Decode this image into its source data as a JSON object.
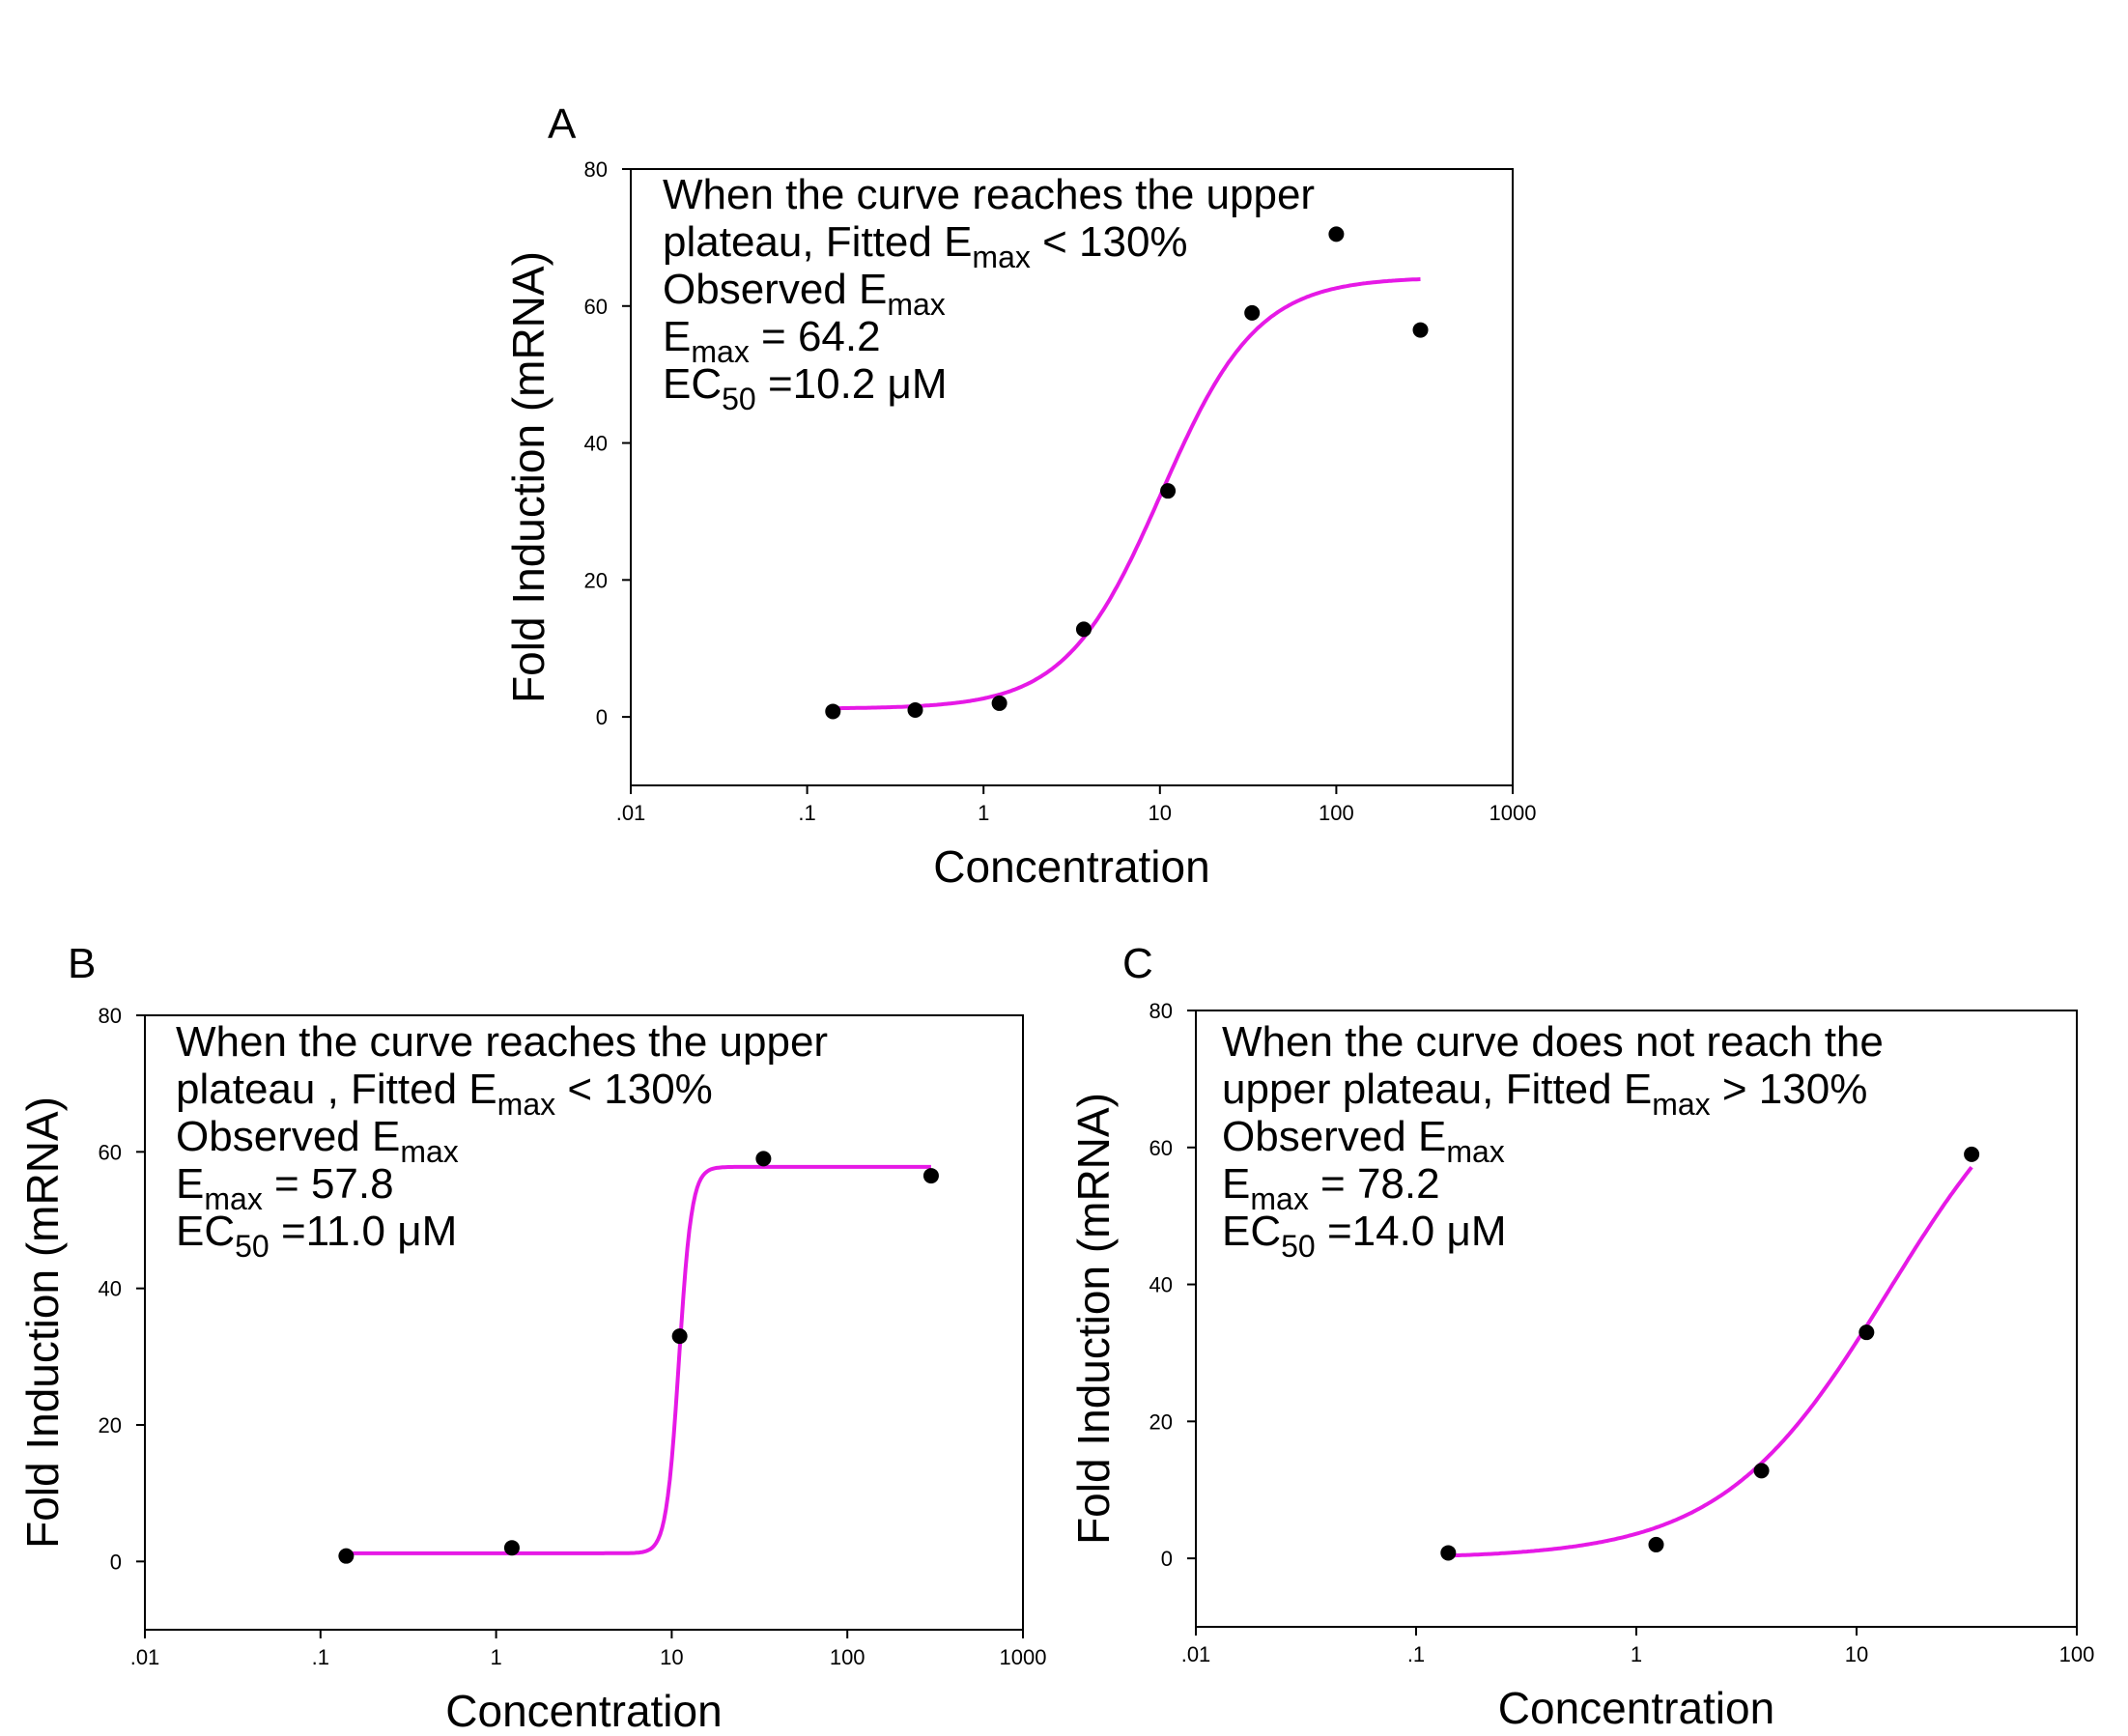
{
  "chart_data": [
    {
      "panel": "A",
      "type": "scatter",
      "xscale": "log",
      "xlim": [
        0.01,
        1000
      ],
      "ylim": [
        -10,
        80
      ],
      "xticks": [
        {
          "value": 0.01,
          "label": ".01"
        },
        {
          "value": 0.1,
          "label": ".1"
        },
        {
          "value": 1,
          "label": "1"
        },
        {
          "value": 10,
          "label": "10"
        },
        {
          "value": 100,
          "label": "100"
        },
        {
          "value": 1000,
          "label": "1000"
        }
      ],
      "yticks": [
        {
          "value": 0,
          "label": "0"
        },
        {
          "value": 20,
          "label": "20"
        },
        {
          "value": 40,
          "label": "40"
        },
        {
          "value": 60,
          "label": "60"
        },
        {
          "value": 80,
          "label": "80"
        }
      ],
      "xlabel": "Concentration",
      "ylabel": "Fold Induction (mRNA)",
      "annotation": [
        [
          {
            "t": "When the curve reaches the upper"
          }
        ],
        [
          {
            "t": "plateau, Fitted E"
          },
          {
            "t": "max",
            "sub": true
          },
          {
            "t": " < 130%"
          }
        ],
        [
          {
            "t": "Observed E"
          },
          {
            "t": "max",
            "sub": true
          }
        ],
        [
          {
            "t": "E"
          },
          {
            "t": "max",
            "sub": true
          },
          {
            "t": " = 64.2"
          }
        ],
        [
          {
            "t": "EC"
          },
          {
            "t": "50",
            "sub": true
          },
          {
            "t": " =10.2 μM"
          }
        ]
      ],
      "points": {
        "x": [
          0.14,
          0.41,
          1.23,
          3.7,
          11.1,
          33.3,
          100,
          300
        ],
        "y": [
          0.8,
          1.0,
          2.0,
          12.8,
          33.0,
          59.0,
          70.5,
          56.5
        ]
      },
      "fit": {
        "bottom": 1.2,
        "top": 64.2,
        "ec50": 10.2,
        "hill": 1.6,
        "xmin": 0.14,
        "xmax": 300
      },
      "colors": {
        "points": "#000000",
        "fit": "#e619e6"
      }
    },
    {
      "panel": "B",
      "type": "scatter",
      "xscale": "log",
      "xlim": [
        0.01,
        1000
      ],
      "ylim": [
        -10,
        80
      ],
      "xticks": [
        {
          "value": 0.01,
          "label": ".01"
        },
        {
          "value": 0.1,
          "label": ".1"
        },
        {
          "value": 1,
          "label": "1"
        },
        {
          "value": 10,
          "label": "10"
        },
        {
          "value": 100,
          "label": "100"
        },
        {
          "value": 1000,
          "label": "1000"
        }
      ],
      "yticks": [
        {
          "value": 0,
          "label": "0"
        },
        {
          "value": 20,
          "label": "20"
        },
        {
          "value": 40,
          "label": "40"
        },
        {
          "value": 60,
          "label": "60"
        },
        {
          "value": 80,
          "label": "80"
        }
      ],
      "xlabel": "Concentration",
      "ylabel": "Fold Induction (mRNA)",
      "annotation": [
        [
          {
            "t": "When the curve reaches the upper"
          }
        ],
        [
          {
            "t": "plateau , Fitted E"
          },
          {
            "t": "max",
            "sub": true
          },
          {
            "t": " < 130%"
          }
        ],
        [
          {
            "t": "Observed E"
          },
          {
            "t": "max",
            "sub": true
          }
        ],
        [
          {
            "t": "E"
          },
          {
            "t": "max",
            "sub": true
          },
          {
            "t": " = 57.8"
          }
        ],
        [
          {
            "t": "EC"
          },
          {
            "t": "50",
            "sub": true
          },
          {
            "t": " =11.0 μM"
          }
        ]
      ],
      "points": {
        "x": [
          0.14,
          1.23,
          11.1,
          33.3,
          300
        ],
        "y": [
          0.8,
          2.0,
          33.0,
          59.0,
          56.5
        ]
      },
      "fit": {
        "bottom": 1.2,
        "top": 57.8,
        "ec50": 11.0,
        "hill": 12,
        "xmin": 0.14,
        "xmax": 300
      },
      "colors": {
        "points": "#000000",
        "fit": "#e619e6"
      }
    },
    {
      "panel": "C",
      "type": "scatter",
      "xscale": "log",
      "xlim": [
        0.01,
        100
      ],
      "ylim": [
        -10,
        80
      ],
      "xticks": [
        {
          "value": 0.01,
          "label": ".01"
        },
        {
          "value": 0.1,
          "label": ".1"
        },
        {
          "value": 1,
          "label": "1"
        },
        {
          "value": 10,
          "label": "10"
        },
        {
          "value": 100,
          "label": "100"
        }
      ],
      "yticks": [
        {
          "value": 0,
          "label": "0"
        },
        {
          "value": 20,
          "label": "20"
        },
        {
          "value": 40,
          "label": "40"
        },
        {
          "value": 60,
          "label": "60"
        },
        {
          "value": 80,
          "label": "80"
        }
      ],
      "xlabel": "Concentration",
      "ylabel": "Fold Induction (mRNA)",
      "annotation": [
        [
          {
            "t": "When the curve does not reach the"
          }
        ],
        [
          {
            "t": "upper plateau, Fitted E"
          },
          {
            "t": "max",
            "sub": true
          },
          {
            "t": " > 130%"
          }
        ],
        [
          {
            "t": "Observed E"
          },
          {
            "t": "max",
            "sub": true
          }
        ],
        [
          {
            "t": "E"
          },
          {
            "t": "max",
            "sub": true
          },
          {
            "t": " = 78.2"
          }
        ],
        [
          {
            "t": "EC"
          },
          {
            "t": "50",
            "sub": true
          },
          {
            "t": " =14.0 μM"
          }
        ]
      ],
      "points": {
        "x": [
          0.14,
          1.23,
          3.7,
          11.1,
          33.3
        ],
        "y": [
          0.8,
          2.0,
          12.8,
          33.0,
          59.0
        ]
      },
      "fit": {
        "bottom": 0.0,
        "top": 78.2,
        "ec50": 14.0,
        "hill": 1.15,
        "xmin": 0.14,
        "xmax": 33.3
      },
      "colors": {
        "points": "#000000",
        "fit": "#e619e6"
      }
    }
  ]
}
